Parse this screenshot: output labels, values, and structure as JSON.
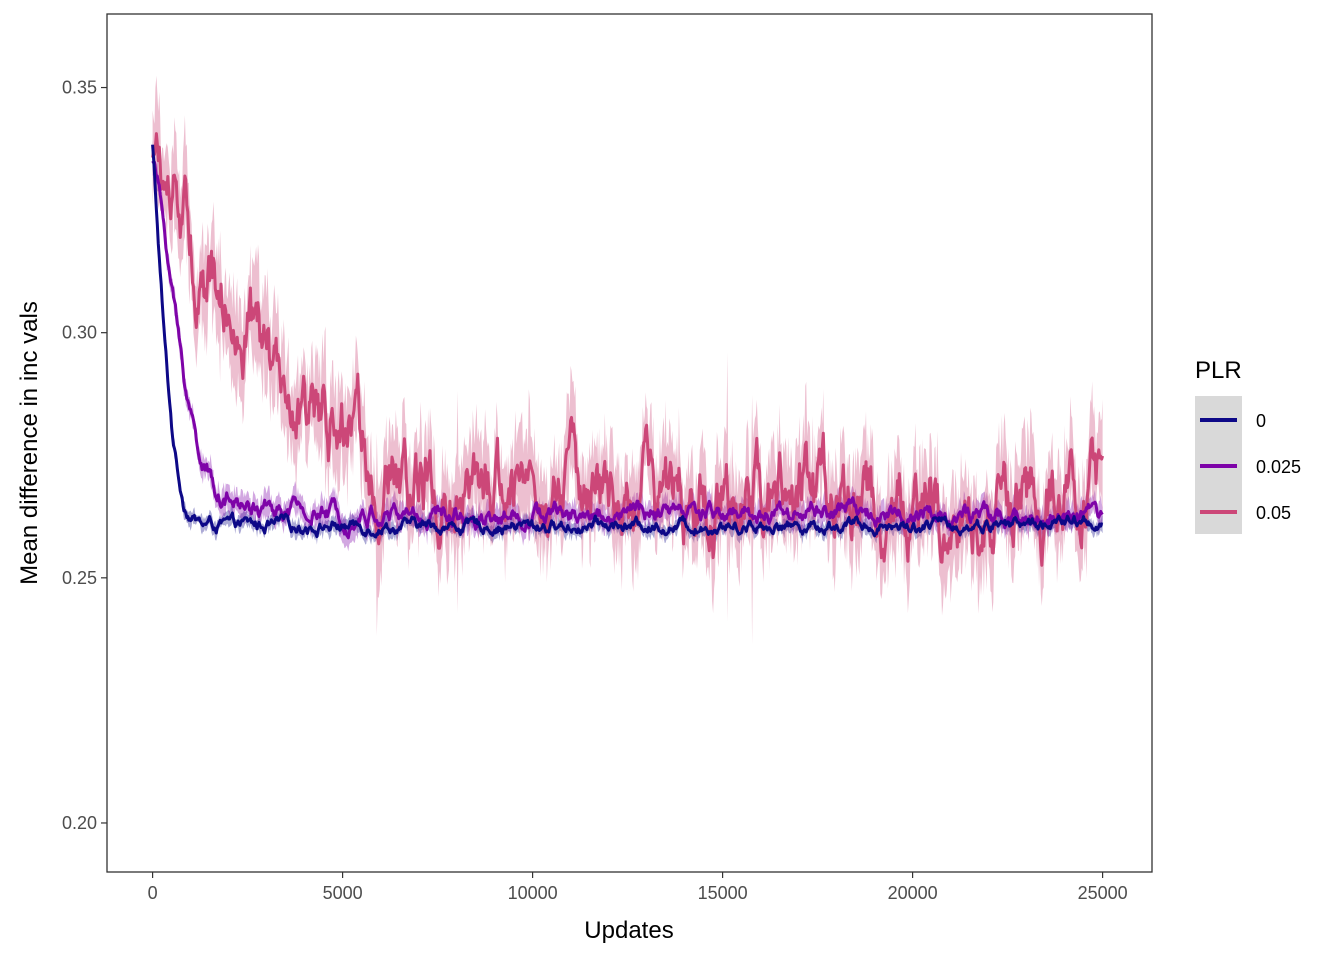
{
  "chart_data": {
    "type": "line",
    "title": "",
    "xlabel": "Updates",
    "ylabel": "Mean difference in inc vals",
    "xlim": [
      -1200,
      26300
    ],
    "ylim": [
      0.19,
      0.365
    ],
    "x_ticks": [
      0,
      5000,
      10000,
      15000,
      20000,
      25000
    ],
    "x_tick_labels": [
      "0",
      "5000",
      "10000",
      "15000",
      "20000",
      "25000"
    ],
    "y_ticks": [
      0.2,
      0.25,
      0.3,
      0.35
    ],
    "y_tick_labels": [
      "0.20",
      "0.25",
      "0.30",
      "0.35"
    ],
    "grid": false,
    "legend": {
      "title": "PLR",
      "position": "right"
    },
    "series": [
      {
        "name": "0",
        "color": "#0d0887",
        "points": [
          [
            0,
            0.338
          ],
          [
            100,
            0.325
          ],
          [
            200,
            0.312
          ],
          [
            300,
            0.3
          ],
          [
            400,
            0.29
          ],
          [
            500,
            0.281
          ],
          [
            600,
            0.275
          ],
          [
            700,
            0.27
          ],
          [
            800,
            0.266
          ],
          [
            900,
            0.264
          ],
          [
            1000,
            0.263
          ],
          [
            1100,
            0.262
          ],
          [
            1300,
            0.261
          ],
          [
            1600,
            0.2608
          ],
          [
            2000,
            0.2607
          ],
          [
            3000,
            0.2607
          ],
          [
            5000,
            0.2606
          ],
          [
            8000,
            0.2605
          ],
          [
            12000,
            0.2606
          ],
          [
            16000,
            0.2607
          ],
          [
            20000,
            0.2607
          ],
          [
            22000,
            0.2609
          ],
          [
            25000,
            0.2612
          ]
        ],
        "noise": 0.0008,
        "band": 0.0015
      },
      {
        "name": "0.025",
        "color": "#7e03a8",
        "points": [
          [
            0,
            0.336
          ],
          [
            150,
            0.33
          ],
          [
            300,
            0.322
          ],
          [
            500,
            0.31
          ],
          [
            700,
            0.298
          ],
          [
            900,
            0.288
          ],
          [
            1100,
            0.28
          ],
          [
            1300,
            0.274
          ],
          [
            1500,
            0.27
          ],
          [
            1800,
            0.267
          ],
          [
            2200,
            0.265
          ],
          [
            2700,
            0.264
          ],
          [
            3500,
            0.2635
          ],
          [
            4500,
            0.263
          ],
          [
            6000,
            0.2628
          ],
          [
            9000,
            0.263
          ],
          [
            12000,
            0.263
          ],
          [
            15000,
            0.2632
          ],
          [
            17000,
            0.2635
          ],
          [
            19000,
            0.2635
          ],
          [
            20000,
            0.263
          ],
          [
            21000,
            0.2625
          ],
          [
            22000,
            0.262
          ],
          [
            23000,
            0.262
          ],
          [
            24000,
            0.2622
          ],
          [
            25000,
            0.2625
          ]
        ],
        "noise": 0.0012,
        "band": 0.0025
      },
      {
        "name": "0.05",
        "color": "#cc4778",
        "points": [
          [
            0,
            0.336
          ],
          [
            300,
            0.331
          ],
          [
            600,
            0.325
          ],
          [
            1000,
            0.317
          ],
          [
            1500,
            0.309
          ],
          [
            2000,
            0.303
          ],
          [
            2500,
            0.298
          ],
          [
            3000,
            0.294
          ],
          [
            3500,
            0.29
          ],
          [
            4000,
            0.286
          ],
          [
            4500,
            0.282
          ],
          [
            5000,
            0.278
          ],
          [
            6000,
            0.274
          ],
          [
            7000,
            0.271
          ],
          [
            8000,
            0.269
          ],
          [
            10000,
            0.267
          ],
          [
            12000,
            0.266
          ],
          [
            15000,
            0.265
          ],
          [
            18000,
            0.2665
          ],
          [
            19000,
            0.265
          ],
          [
            20000,
            0.2645
          ],
          [
            21000,
            0.265
          ],
          [
            22000,
            0.2655
          ],
          [
            23000,
            0.2665
          ],
          [
            24000,
            0.2675
          ],
          [
            25000,
            0.268
          ]
        ],
        "noise": 0.005,
        "band": 0.009
      }
    ]
  }
}
